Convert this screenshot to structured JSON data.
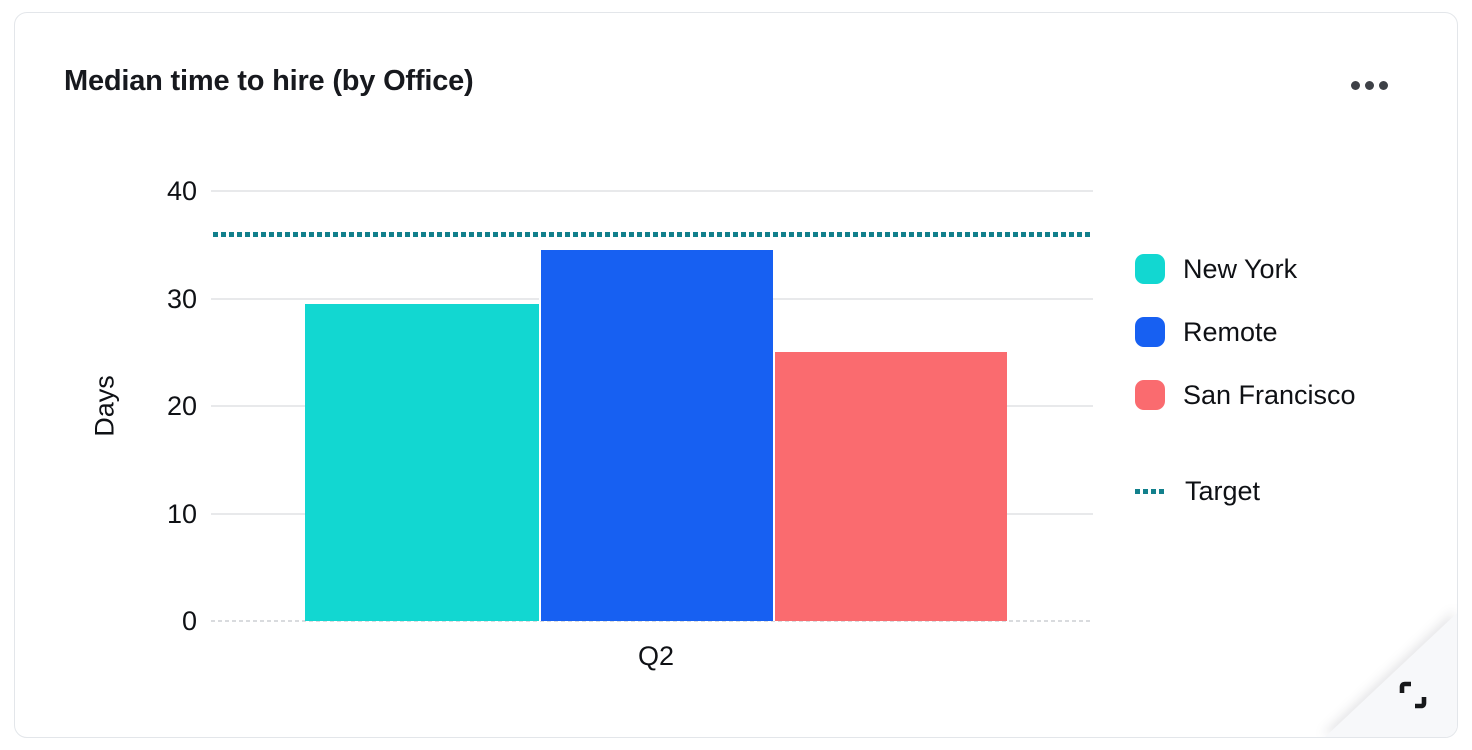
{
  "card": {
    "title": "Median time to hire (by Office)",
    "menu_icon": "ellipsis-horizontal",
    "expand_icon": "expand-corners"
  },
  "chart_data": {
    "type": "bar",
    "title": "Median time to hire (by Office)",
    "categories": [
      "Q2"
    ],
    "series": [
      {
        "name": "New York",
        "values": [
          29.5
        ],
        "color": "#12D7D1"
      },
      {
        "name": "Remote",
        "values": [
          34.5
        ],
        "color": "#1760F2"
      },
      {
        "name": "San Francisco",
        "values": [
          25
        ],
        "color": "#FA6B6F"
      }
    ],
    "target": {
      "label": "Target",
      "value": 36,
      "color": "#12808C",
      "style": "dotted"
    },
    "xlabel": "",
    "ylabel": "Days",
    "ylim": [
      0,
      40
    ],
    "yticks": [
      0,
      10,
      20,
      30,
      40
    ],
    "grid": true,
    "legend_position": "right"
  }
}
